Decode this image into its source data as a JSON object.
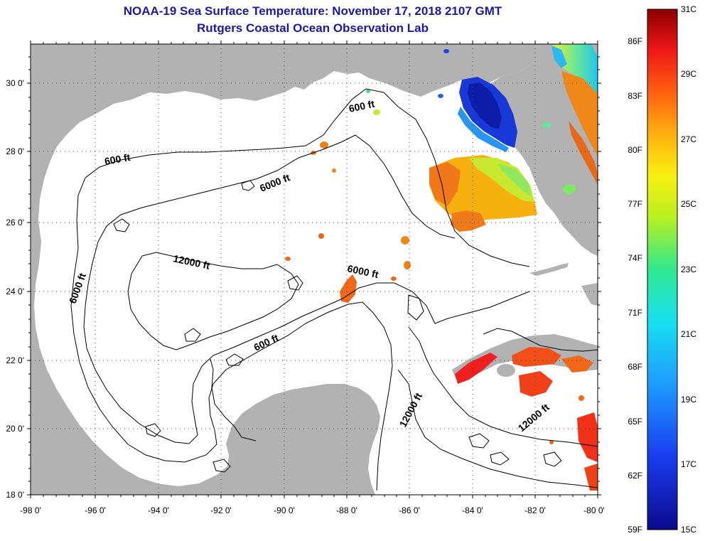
{
  "title_line1": "NOAA-19 Sea Surface Temperature:  November 17, 2018 2107 GMT",
  "title_line2": "Rutgers Coastal Ocean Observation Lab",
  "x_ticks": [
    "-98 0'",
    "-96 0'",
    "-94 0'",
    "-92 0'",
    "-90 0'",
    "-88 0'",
    "-86 0'",
    "-84 0'",
    "-82 0'",
    "-80 0'"
  ],
  "y_ticks": [
    "30 0'",
    "28 0'",
    "26 0'",
    "24 0'",
    "22 0'",
    "20 0'",
    "18 0'"
  ],
  "contour_labels": {
    "c600_north_east": "600 ft",
    "c600_north_west": "600 ft",
    "c6000_north": "6000 ft",
    "c12000_center": "12000 ft",
    "c6000_center": "6000 ft",
    "c6000_west": "6000 ft",
    "c600_yucatan": "600 ft",
    "c12000_southeast": "12000 ft",
    "c12000_east": "12000 ft"
  },
  "colorbar": {
    "fahrenheit": [
      "86F",
      "83F",
      "80F",
      "77F",
      "74F",
      "71F",
      "68F",
      "65F",
      "62F",
      "59F"
    ],
    "celsius": [
      "31C",
      "29C",
      "27C",
      "25C",
      "23C",
      "21C",
      "19C",
      "17C",
      "15C"
    ]
  },
  "colors": {
    "title": "#1a1aa6",
    "land": "#b2b2b2",
    "ocean": "#ffffff",
    "frame": "#000000"
  }
}
